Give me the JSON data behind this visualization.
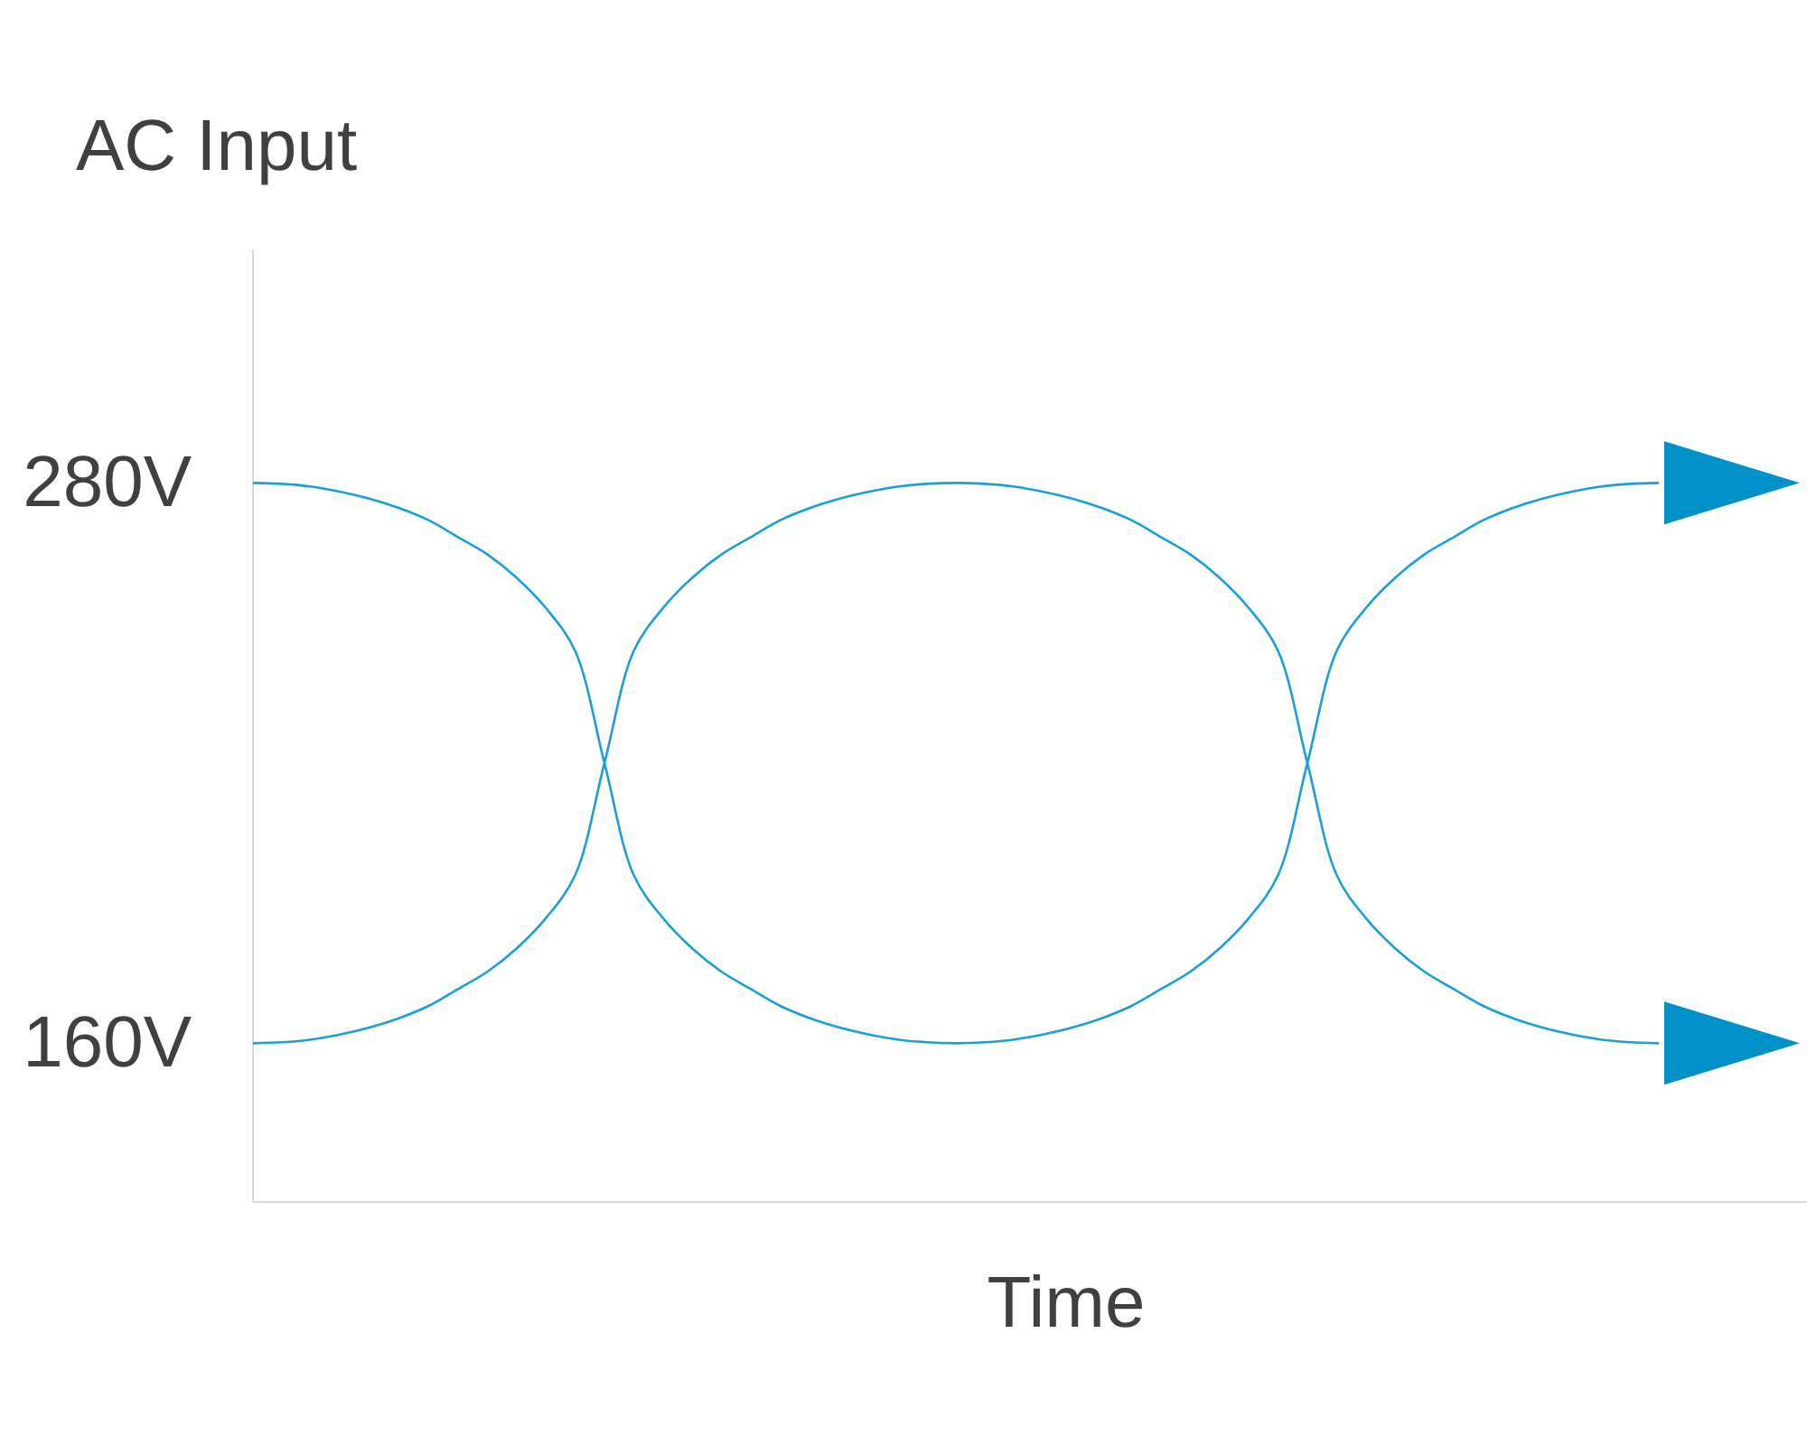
{
  "chart_data": {
    "type": "line",
    "title": "AC Input",
    "xlabel": "Time",
    "categories": [
      null,
      null,
      null,
      null,
      null,
      null,
      null,
      null,
      null,
      null,
      null,
      null,
      null,
      null,
      null,
      null,
      null,
      null,
      null,
      null,
      null,
      null,
      null,
      null,
      null,
      null,
      null,
      null,
      null,
      null,
      null,
      null,
      null,
      null,
      null,
      null,
      null,
      null,
      null,
      null,
      null,
      null,
      null,
      null,
      null,
      null,
      null,
      null,
      null
    ],
    "ylim": [
      126,
      330
    ],
    "yticks": [
      {
        "value": 160,
        "label": "160V"
      },
      {
        "value": 280,
        "label": "280V"
      }
    ],
    "series": [
      {
        "color": "#1a9fdb",
        "values": [
          280,
          279.8,
          279.2,
          278.1,
          276.6,
          274.6,
          272,
          268.4,
          264.7,
          259.7,
          253.2,
          244,
          220,
          196,
          186.8,
          180.3,
          175.3,
          171.6,
          168,
          165.4,
          163.4,
          161.9,
          160.8,
          160.2,
          160,
          160.2,
          160.8,
          161.9,
          163.4,
          165.4,
          168,
          171.6,
          175.3,
          180.3,
          186.8,
          196,
          220,
          244,
          253.2,
          259.7,
          264.7,
          268.4,
          272,
          274.6,
          276.6,
          278.1,
          279.2,
          279.8,
          280
        ]
      },
      {
        "color": "#1a9fdb",
        "values": [
          160,
          160.2,
          160.8,
          161.9,
          163.4,
          165.4,
          168,
          171.6,
          175.3,
          180.3,
          186.8,
          196,
          220,
          244,
          253.2,
          259.7,
          264.7,
          268.4,
          272,
          274.6,
          276.6,
          278.1,
          279.2,
          279.8,
          280,
          279.8,
          279.2,
          278.1,
          276.6,
          274.6,
          272,
          268.4,
          264.7,
          259.7,
          253.2,
          244,
          220,
          196,
          186.8,
          180.3,
          175.3,
          171.6,
          168,
          165.4,
          163.4,
          161.9,
          160.8,
          160.2,
          160
        ]
      }
    ]
  }
}
